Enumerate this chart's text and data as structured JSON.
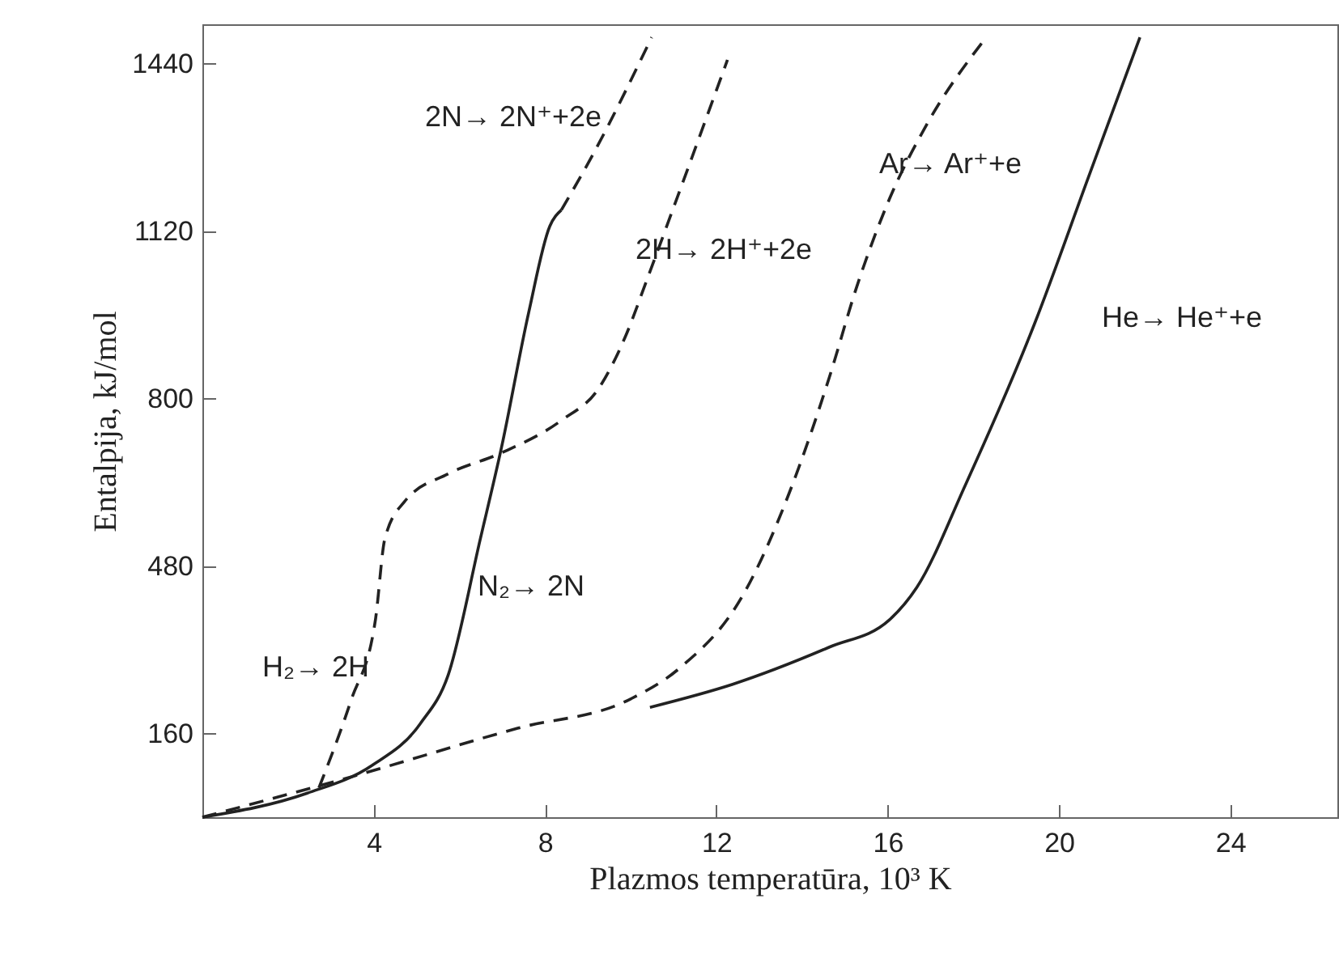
{
  "chart_data": {
    "type": "line",
    "xlabel": "Plazmos temperatūra, 10³ K",
    "ylabel": "Entalpija, kJ/mol",
    "xlim": [
      0,
      26.5
    ],
    "xticks": [
      4,
      8,
      12,
      16,
      20,
      24
    ],
    "ylim": [
      0,
      1515
    ],
    "yticks": [
      160,
      480,
      800,
      1120,
      1440
    ],
    "grid": false,
    "series": [
      {
        "color": "#222222",
        "line_style": "solid",
        "x": [
          0,
          2.45,
          3.96,
          5.09,
          5.74,
          6.49,
          6.98,
          7.62,
          8.11,
          8.38
        ],
        "values": [
          0,
          46,
          99,
          179,
          272,
          532,
          705,
          965,
          1129,
          1160
        ]
      },
      {
        "color": "#222222",
        "line_style": "dashed",
        "x": [
          8.38,
          9.13,
          10.49
        ],
        "values": [
          1160,
          1268,
          1490
        ]
      },
      {
        "color": "#222222",
        "line_style": "dashed",
        "x": [
          2.72,
          3.47,
          4.04,
          4.26,
          4.72,
          5.74,
          6.98,
          8.38,
          9.25,
          9.89,
          10.38,
          11.02,
          12.26
        ],
        "values": [
          56,
          223,
          377,
          532,
          603,
          656,
          696,
          758,
          819,
          921,
          1027,
          1169,
          1447
        ]
      },
      {
        "color": "#222222",
        "line_style": "dashed",
        "x": [
          0,
          3.47,
          7.36,
          10.0,
          11.13,
          12.64,
          13.77,
          14.64,
          15.28,
          16.04,
          16.91,
          18.3
        ],
        "values": [
          0,
          77,
          170,
          226,
          284,
          427,
          634,
          841,
          1014,
          1181,
          1323,
          1490
        ]
      },
      {
        "color": "#222222",
        "line_style": "solid",
        "x": [
          10.45,
          12.38,
          14.64,
          16.04,
          16.68,
          17.81,
          19.43,
          20.68,
          21.89
        ],
        "values": [
          210,
          254,
          325,
          377,
          439,
          634,
          943,
          1221,
          1490
        ]
      }
    ],
    "annotations": [
      "2N→ 2N⁺+2e",
      "2H→ 2H⁺+2e",
      "Ar→ Ar⁺+e",
      "He→ He⁺+e",
      "N₂→ 2N",
      "H₂→ 2H"
    ]
  }
}
